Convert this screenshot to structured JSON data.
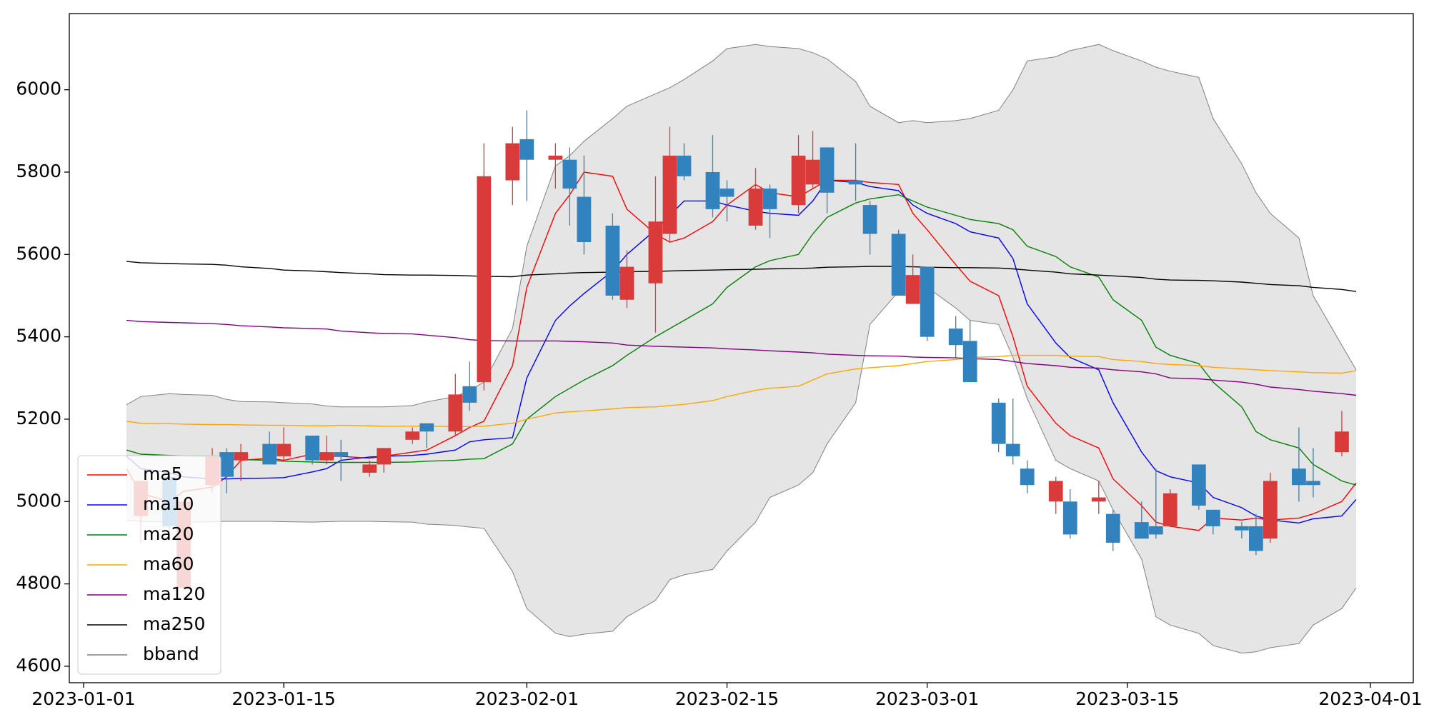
{
  "chart_data": {
    "type": "candlestick",
    "x": [
      "2023-01-04",
      "2023-01-05",
      "2023-01-07",
      "2023-01-08",
      "2023-01-10",
      "2023-01-11",
      "2023-01-12",
      "2023-01-14",
      "2023-01-15",
      "2023-01-17",
      "2023-01-18",
      "2023-01-19",
      "2023-01-21",
      "2023-01-22",
      "2023-01-24",
      "2023-01-25",
      "2023-01-27",
      "2023-01-28",
      "2023-01-29",
      "2023-01-31",
      "2023-02-01",
      "2023-02-03",
      "2023-02-04",
      "2023-02-05",
      "2023-02-07",
      "2023-02-08",
      "2023-02-10",
      "2023-02-11",
      "2023-02-12",
      "2023-02-14",
      "2023-02-15",
      "2023-02-17",
      "2023-02-18",
      "2023-02-20",
      "2023-02-21",
      "2023-02-22",
      "2023-02-24",
      "2023-02-25",
      "2023-02-27",
      "2023-02-28",
      "2023-03-01",
      "2023-03-03",
      "2023-03-04",
      "2023-03-06",
      "2023-03-07",
      "2023-03-08",
      "2023-03-10",
      "2023-03-11",
      "2023-03-13",
      "2023-03-14",
      "2023-03-16",
      "2023-03-17",
      "2023-03-18",
      "2023-03-20",
      "2023-03-21",
      "2023-03-23",
      "2023-03-24",
      "2023-03-25",
      "2023-03-27",
      "2023-03-28",
      "2023-03-30",
      "2023-03-31"
    ],
    "open": [
      null,
      4965,
      5060,
      4790,
      5040,
      5120,
      5100,
      5140,
      5110,
      5160,
      5100,
      5120,
      5070,
      5090,
      5150,
      5190,
      5170,
      5280,
      5290,
      5780,
      5880,
      5830,
      5830,
      5740,
      5670,
      5490,
      5530,
      5650,
      5840,
      5800,
      5760,
      5670,
      5760,
      5720,
      5770,
      5860,
      5780,
      5720,
      5650,
      5480,
      5570,
      5420,
      5390,
      5240,
      5140,
      5080,
      5000,
      5000,
      5000,
      4970,
      4950,
      4940,
      4940,
      5090,
      4980,
      4940,
      4940,
      4910,
      5080,
      5050,
      5120,
      null
    ],
    "high": [
      null,
      5050,
      5060,
      5000,
      5130,
      5130,
      5140,
      5170,
      5180,
      5160,
      5160,
      5150,
      5100,
      5130,
      5180,
      5190,
      5310,
      5340,
      5870,
      5910,
      5950,
      5870,
      5860,
      5840,
      5700,
      5610,
      5790,
      5910,
      5870,
      5890,
      5780,
      5810,
      5770,
      5890,
      5900,
      5860,
      5870,
      5730,
      5660,
      5600,
      5570,
      5450,
      5440,
      5250,
      5250,
      5100,
      5060,
      5030,
      5050,
      4980,
      5000,
      5080,
      5030,
      5090,
      4980,
      4950,
      4970,
      5070,
      5180,
      5130,
      5220,
      null
    ],
    "low": [
      null,
      4900,
      4930,
      4790,
      5020,
      5020,
      5050,
      5090,
      5100,
      5090,
      5090,
      5050,
      5060,
      5070,
      5140,
      5130,
      5160,
      5220,
      5270,
      5720,
      5730,
      5760,
      5670,
      5600,
      5490,
      5470,
      5410,
      5630,
      5780,
      5690,
      5680,
      5660,
      5640,
      5700,
      5760,
      5700,
      5730,
      5600,
      5500,
      5480,
      5390,
      5350,
      5290,
      5120,
      5090,
      5020,
      4970,
      4910,
      4970,
      4880,
      4910,
      4910,
      4940,
      4980,
      4920,
      4910,
      4870,
      4900,
      5000,
      5010,
      5110,
      null
    ],
    "close": [
      null,
      5050,
      4940,
      5000,
      5110,
      5060,
      5120,
      5090,
      5140,
      5100,
      5120,
      5110,
      5090,
      5130,
      5170,
      5170,
      5260,
      5240,
      5790,
      5870,
      5830,
      5840,
      5760,
      5630,
      5500,
      5570,
      5680,
      5840,
      5790,
      5710,
      5740,
      5760,
      5710,
      5840,
      5830,
      5750,
      5770,
      5650,
      5500,
      5550,
      5400,
      5380,
      5290,
      5140,
      5110,
      5040,
      5050,
      4920,
      5010,
      4900,
      4910,
      4920,
      5020,
      4990,
      4940,
      4930,
      4880,
      5050,
      5040,
      5040,
      5170,
      null
    ],
    "up_color": "#d93a3a",
    "down_color": "#3282bd",
    "series": [
      {
        "name": "ma5",
        "color": "#ff0000",
        "values": [
          5080,
          5020,
          5000,
          5025,
          5035,
          5060,
          5100,
          5105,
          5100,
          5115,
          5110,
          5110,
          5105,
          5110,
          5120,
          5125,
          5160,
          5180,
          5195,
          5330,
          5520,
          5700,
          5745,
          5800,
          5790,
          5710,
          5650,
          5630,
          5640,
          5680,
          5720,
          5770,
          5750,
          5740,
          5760,
          5780,
          5780,
          5775,
          5770,
          5700,
          5660,
          5575,
          5535,
          5500,
          5400,
          5280,
          5190,
          5160,
          5130,
          5055,
          4990,
          4950,
          4940,
          4930,
          4960,
          4955,
          4960,
          4955,
          4960,
          4970,
          5000,
          5045
        ]
      },
      {
        "name": "ma10",
        "color": "#0000ff",
        "values": [
          5110,
          5080,
          5070,
          5060,
          5055,
          5055,
          5056,
          5057,
          5058,
          5072,
          5080,
          5100,
          5108,
          5110,
          5112,
          5115,
          5125,
          5145,
          5150,
          5155,
          5300,
          5440,
          5475,
          5505,
          5560,
          5600,
          5660,
          5695,
          5730,
          5730,
          5720,
          5705,
          5700,
          5695,
          5730,
          5780,
          5775,
          5765,
          5755,
          5720,
          5700,
          5675,
          5655,
          5640,
          5590,
          5480,
          5385,
          5350,
          5320,
          5240,
          5120,
          5075,
          5060,
          5045,
          5010,
          4985,
          4965,
          4955,
          4948,
          4958,
          4965,
          5005
        ]
      },
      {
        "name": "ma20",
        "color": "#008000",
        "values": [
          5125,
          5115,
          5112,
          5111,
          5110,
          5108,
          5102,
          5100,
          5098,
          5096,
          5095,
          5095,
          5095,
          5095,
          5096,
          5098,
          5100,
          5103,
          5104,
          5140,
          5200,
          5255,
          5275,
          5295,
          5330,
          5355,
          5400,
          5420,
          5440,
          5480,
          5520,
          5570,
          5585,
          5600,
          5650,
          5690,
          5725,
          5735,
          5745,
          5730,
          5715,
          5695,
          5685,
          5675,
          5660,
          5620,
          5595,
          5570,
          5545,
          5490,
          5440,
          5375,
          5355,
          5335,
          5290,
          5230,
          5170,
          5150,
          5130,
          5090,
          5050,
          5040
        ]
      },
      {
        "name": "ma60",
        "color": "#ffa500",
        "values": [
          5195,
          5190,
          5189,
          5188,
          5187,
          5187,
          5186,
          5185,
          5185,
          5184,
          5184,
          5185,
          5184,
          5183,
          5183,
          5183,
          5182,
          5182,
          5183,
          5190,
          5200,
          5215,
          5218,
          5220,
          5225,
          5228,
          5230,
          5233,
          5236,
          5245,
          5255,
          5270,
          5275,
          5280,
          5295,
          5310,
          5322,
          5325,
          5330,
          5335,
          5340,
          5345,
          5350,
          5352,
          5355,
          5355,
          5355,
          5353,
          5352,
          5345,
          5340,
          5335,
          5333,
          5330,
          5326,
          5322,
          5320,
          5318,
          5315,
          5313,
          5312,
          5318
        ]
      },
      {
        "name": "ma120",
        "color": "#800080",
        "values": [
          5440,
          5437,
          5435,
          5434,
          5432,
          5430,
          5427,
          5424,
          5422,
          5420,
          5419,
          5414,
          5410,
          5408,
          5407,
          5404,
          5398,
          5393,
          5391,
          5390,
          5390,
          5390,
          5389,
          5388,
          5385,
          5380,
          5377,
          5376,
          5375,
          5373,
          5371,
          5368,
          5366,
          5363,
          5361,
          5358,
          5355,
          5354,
          5353,
          5351,
          5350,
          5349,
          5347,
          5345,
          5340,
          5335,
          5330,
          5326,
          5324,
          5320,
          5315,
          5310,
          5300,
          5298,
          5295,
          5290,
          5285,
          5278,
          5272,
          5268,
          5262,
          5258
        ]
      },
      {
        "name": "ma250",
        "color": "#000000",
        "values": [
          5583,
          5580,
          5578,
          5577,
          5576,
          5574,
          5570,
          5566,
          5562,
          5560,
          5558,
          5556,
          5553,
          5551,
          5550,
          5550,
          5549,
          5548,
          5547,
          5546,
          5550,
          5553,
          5555,
          5556,
          5557,
          5558,
          5559,
          5560,
          5561,
          5562,
          5563,
          5564,
          5565,
          5566,
          5567,
          5569,
          5570,
          5571,
          5571,
          5570,
          5569,
          5568,
          5568,
          5567,
          5565,
          5562,
          5557,
          5553,
          5550,
          5548,
          5544,
          5540,
          5538,
          5537,
          5536,
          5533,
          5530,
          5527,
          5524,
          5520,
          5515,
          5510
        ]
      },
      {
        "name": "bband",
        "color": "#808080",
        "fill": "#e5e5e5",
        "upper": [
          5235,
          5255,
          5262,
          5260,
          5258,
          5248,
          5243,
          5242,
          5240,
          5237,
          5232,
          5230,
          5230,
          5230,
          5233,
          5242,
          5255,
          5270,
          5290,
          5420,
          5620,
          5815,
          5840,
          5875,
          5930,
          5960,
          5990,
          6005,
          6025,
          6070,
          6100,
          6110,
          6105,
          6100,
          6090,
          6075,
          6020,
          5960,
          5920,
          5925,
          5920,
          5925,
          5930,
          5950,
          6000,
          6070,
          6080,
          6095,
          6110,
          6095,
          6070,
          6055,
          6045,
          6030,
          5930,
          5820,
          5750,
          5700,
          5640,
          5500,
          5380,
          5320
        ],
        "lower": [
          4955,
          4952,
          4950,
          4950,
          4951,
          4952,
          4952,
          4952,
          4951,
          4950,
          4951,
          4952,
          4952,
          4951,
          4950,
          4945,
          4942,
          4938,
          4935,
          4830,
          4740,
          4680,
          4672,
          4678,
          4685,
          4720,
          4760,
          4810,
          4822,
          4835,
          4880,
          4950,
          5010,
          5040,
          5070,
          5140,
          5240,
          5430,
          5510,
          5520,
          5520,
          5470,
          5440,
          5430,
          5350,
          5250,
          5100,
          5080,
          5050,
          4980,
          4860,
          4720,
          4700,
          4680,
          4650,
          4632,
          4635,
          4645,
          4655,
          4700,
          4740,
          4790
        ]
      }
    ],
    "xlim": [
      "2022-12-31",
      "2023-04-04"
    ],
    "ylim": [
      4560,
      6185
    ],
    "xticks": [
      "2023-01-01",
      "2023-01-15",
      "2023-02-01",
      "2023-02-15",
      "2023-03-01",
      "2023-03-15",
      "2023-04-01"
    ],
    "yticks": [
      4600,
      4800,
      5000,
      5200,
      5400,
      5600,
      5800,
      6000
    ],
    "legend": "lower left"
  }
}
